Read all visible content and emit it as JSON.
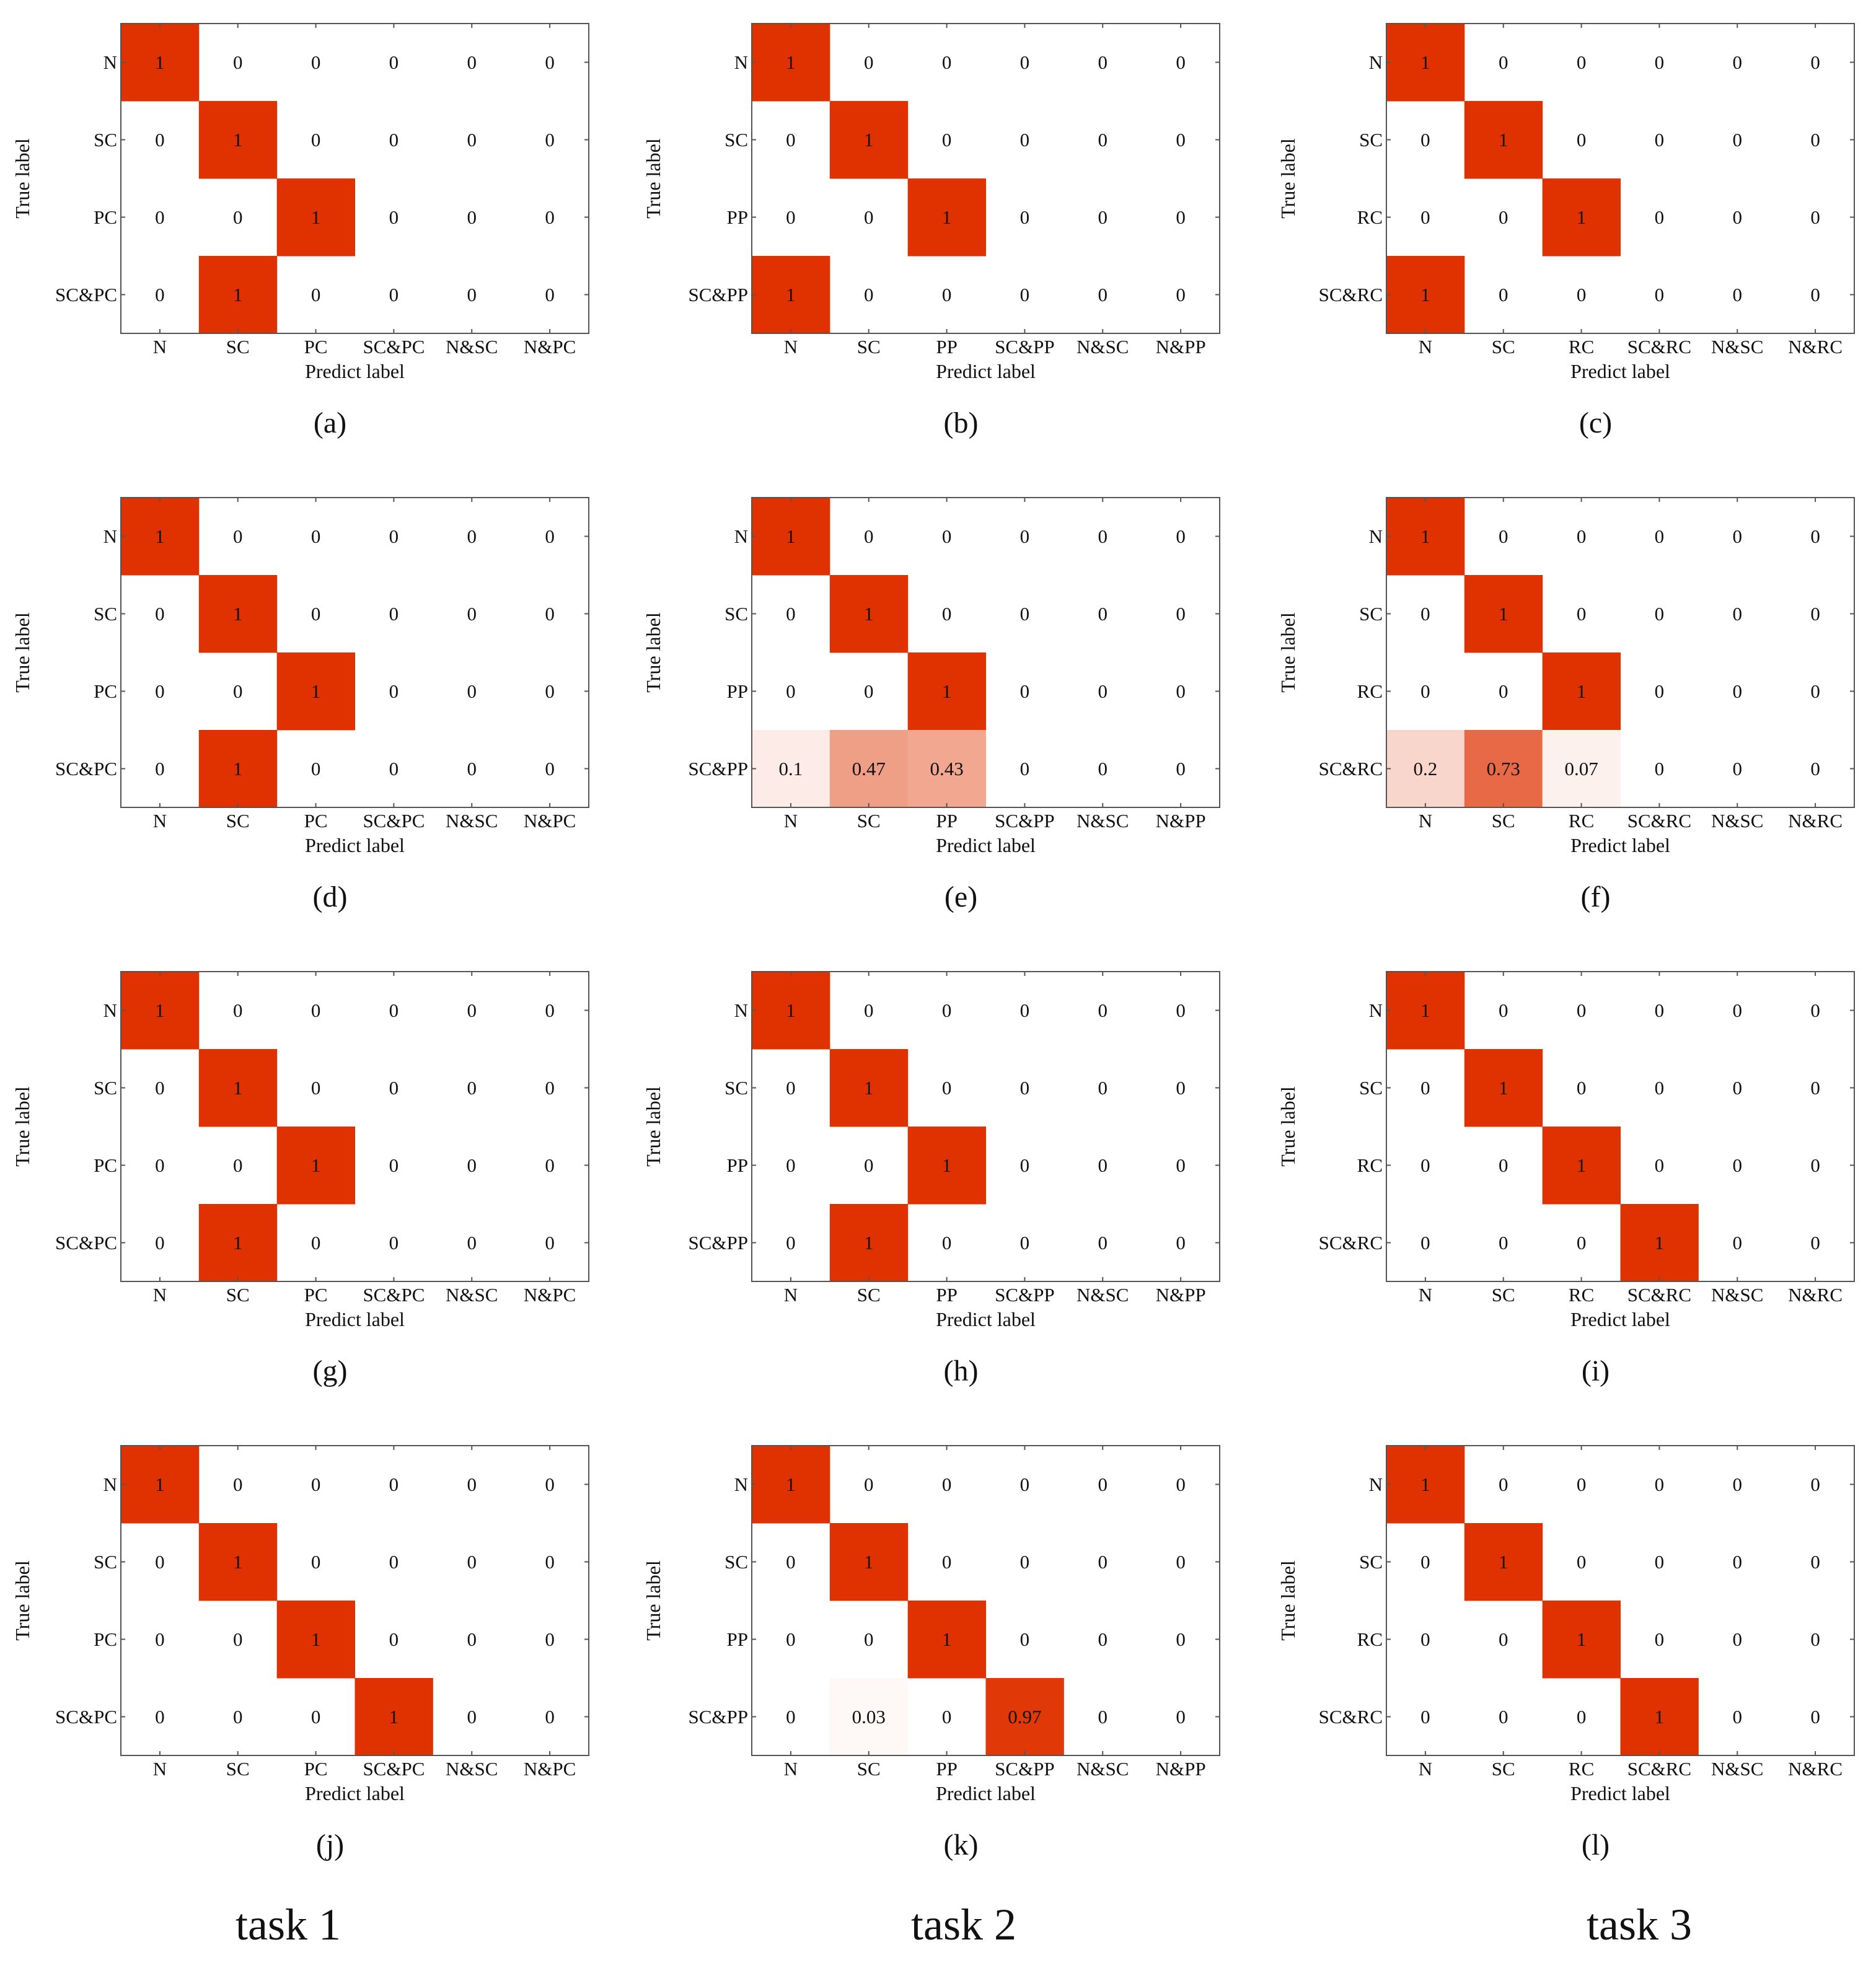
{
  "colors": {
    "max": "#e03200",
    "min": "#ffffff",
    "text": "#111111",
    "frame": "#555555"
  },
  "column_labels": [
    "task 1",
    "task 2",
    "task 3"
  ],
  "chart_data": [
    {
      "type": "heatmap",
      "panel": "(a)",
      "xlabel": "Predict label",
      "ylabel": "True label",
      "x_categories": [
        "N",
        "SC",
        "PC",
        "SC&PC",
        "N&SC",
        "N&PC"
      ],
      "y_categories": [
        "N",
        "SC",
        "PC",
        "SC&PC"
      ],
      "values": [
        [
          1,
          0,
          0,
          0,
          0,
          0
        ],
        [
          0,
          1,
          0,
          0,
          0,
          0
        ],
        [
          0,
          0,
          1,
          0,
          0,
          0
        ],
        [
          0,
          1,
          0,
          0,
          0,
          0
        ]
      ]
    },
    {
      "type": "heatmap",
      "panel": "(b)",
      "xlabel": "Predict label",
      "ylabel": "True label",
      "x_categories": [
        "N",
        "SC",
        "PP",
        "SC&PP",
        "N&SC",
        "N&PP"
      ],
      "y_categories": [
        "N",
        "SC",
        "PP",
        "SC&PP"
      ],
      "values": [
        [
          1,
          0,
          0,
          0,
          0,
          0
        ],
        [
          0,
          1,
          0,
          0,
          0,
          0
        ],
        [
          0,
          0,
          1,
          0,
          0,
          0
        ],
        [
          1,
          0,
          0,
          0,
          0,
          0
        ]
      ]
    },
    {
      "type": "heatmap",
      "panel": "(c)",
      "xlabel": "Predict label",
      "ylabel": "True label",
      "x_categories": [
        "N",
        "SC",
        "RC",
        "SC&RC",
        "N&SC",
        "N&RC"
      ],
      "y_categories": [
        "N",
        "SC",
        "RC",
        "SC&RC"
      ],
      "values": [
        [
          1,
          0,
          0,
          0,
          0,
          0
        ],
        [
          0,
          1,
          0,
          0,
          0,
          0
        ],
        [
          0,
          0,
          1,
          0,
          0,
          0
        ],
        [
          1,
          0,
          0,
          0,
          0,
          0
        ]
      ]
    },
    {
      "type": "heatmap",
      "panel": "(d)",
      "xlabel": "Predict label",
      "ylabel": "True label",
      "x_categories": [
        "N",
        "SC",
        "PC",
        "SC&PC",
        "N&SC",
        "N&PC"
      ],
      "y_categories": [
        "N",
        "SC",
        "PC",
        "SC&PC"
      ],
      "values": [
        [
          1,
          0,
          0,
          0,
          0,
          0
        ],
        [
          0,
          1,
          0,
          0,
          0,
          0
        ],
        [
          0,
          0,
          1,
          0,
          0,
          0
        ],
        [
          0,
          1,
          0,
          0,
          0,
          0
        ]
      ]
    },
    {
      "type": "heatmap",
      "panel": "(e)",
      "xlabel": "Predict label",
      "ylabel": "True label",
      "x_categories": [
        "N",
        "SC",
        "PP",
        "SC&PP",
        "N&SC",
        "N&PP"
      ],
      "y_categories": [
        "N",
        "SC",
        "PP",
        "SC&PP"
      ],
      "values": [
        [
          1,
          0,
          0,
          0,
          0,
          0
        ],
        [
          0,
          1,
          0,
          0,
          0,
          0
        ],
        [
          0,
          0,
          1,
          0,
          0,
          0
        ],
        [
          0.1,
          0.47,
          0.43,
          0,
          0,
          0
        ]
      ]
    },
    {
      "type": "heatmap",
      "panel": "(f)",
      "xlabel": "Predict label",
      "ylabel": "True label",
      "x_categories": [
        "N",
        "SC",
        "RC",
        "SC&RC",
        "N&SC",
        "N&RC"
      ],
      "y_categories": [
        "N",
        "SC",
        "RC",
        "SC&RC"
      ],
      "values": [
        [
          1,
          0,
          0,
          0,
          0,
          0
        ],
        [
          0,
          1,
          0,
          0,
          0,
          0
        ],
        [
          0,
          0,
          1,
          0,
          0,
          0
        ],
        [
          0.2,
          0.73,
          0.07,
          0,
          0,
          0
        ]
      ]
    },
    {
      "type": "heatmap",
      "panel": "(g)",
      "xlabel": "Predict label",
      "ylabel": "True label",
      "x_categories": [
        "N",
        "SC",
        "PC",
        "SC&PC",
        "N&SC",
        "N&PC"
      ],
      "y_categories": [
        "N",
        "SC",
        "PC",
        "SC&PC"
      ],
      "values": [
        [
          1,
          0,
          0,
          0,
          0,
          0
        ],
        [
          0,
          1,
          0,
          0,
          0,
          0
        ],
        [
          0,
          0,
          1,
          0,
          0,
          0
        ],
        [
          0,
          1,
          0,
          0,
          0,
          0
        ]
      ]
    },
    {
      "type": "heatmap",
      "panel": "(h)",
      "xlabel": "Predict label",
      "ylabel": "True label",
      "x_categories": [
        "N",
        "SC",
        "PP",
        "SC&PP",
        "N&SC",
        "N&PP"
      ],
      "y_categories": [
        "N",
        "SC",
        "PP",
        "SC&PP"
      ],
      "values": [
        [
          1,
          0,
          0,
          0,
          0,
          0
        ],
        [
          0,
          1,
          0,
          0,
          0,
          0
        ],
        [
          0,
          0,
          1,
          0,
          0,
          0
        ],
        [
          0,
          1,
          0,
          0,
          0,
          0
        ]
      ]
    },
    {
      "type": "heatmap",
      "panel": "(i)",
      "xlabel": "Predict label",
      "ylabel": "True label",
      "x_categories": [
        "N",
        "SC",
        "RC",
        "SC&RC",
        "N&SC",
        "N&RC"
      ],
      "y_categories": [
        "N",
        "SC",
        "RC",
        "SC&RC"
      ],
      "values": [
        [
          1,
          0,
          0,
          0,
          0,
          0
        ],
        [
          0,
          1,
          0,
          0,
          0,
          0
        ],
        [
          0,
          0,
          1,
          0,
          0,
          0
        ],
        [
          0,
          0,
          0,
          1,
          0,
          0
        ]
      ]
    },
    {
      "type": "heatmap",
      "panel": "(j)",
      "xlabel": "Predict label",
      "ylabel": "True label",
      "x_categories": [
        "N",
        "SC",
        "PC",
        "SC&PC",
        "N&SC",
        "N&PC"
      ],
      "y_categories": [
        "N",
        "SC",
        "PC",
        "SC&PC"
      ],
      "values": [
        [
          1,
          0,
          0,
          0,
          0,
          0
        ],
        [
          0,
          1,
          0,
          0,
          0,
          0
        ],
        [
          0,
          0,
          1,
          0,
          0,
          0
        ],
        [
          0,
          0,
          0,
          1,
          0,
          0
        ]
      ]
    },
    {
      "type": "heatmap",
      "panel": "(k)",
      "xlabel": "Predict label",
      "ylabel": "True label",
      "x_categories": [
        "N",
        "SC",
        "PP",
        "SC&PP",
        "N&SC",
        "N&PP"
      ],
      "y_categories": [
        "N",
        "SC",
        "PP",
        "SC&PP"
      ],
      "values": [
        [
          1,
          0,
          0,
          0,
          0,
          0
        ],
        [
          0,
          1,
          0,
          0,
          0,
          0
        ],
        [
          0,
          0,
          1,
          0,
          0,
          0
        ],
        [
          0,
          0.03,
          0,
          0.97,
          0,
          0
        ]
      ]
    },
    {
      "type": "heatmap",
      "panel": "(l)",
      "xlabel": "Predict label",
      "ylabel": "True label",
      "x_categories": [
        "N",
        "SC",
        "RC",
        "SC&RC",
        "N&SC",
        "N&RC"
      ],
      "y_categories": [
        "N",
        "SC",
        "RC",
        "SC&RC"
      ],
      "values": [
        [
          1,
          0,
          0,
          0,
          0,
          0
        ],
        [
          0,
          1,
          0,
          0,
          0,
          0
        ],
        [
          0,
          0,
          1,
          0,
          0,
          0
        ],
        [
          0,
          0,
          0,
          1,
          0,
          0
        ]
      ]
    }
  ]
}
